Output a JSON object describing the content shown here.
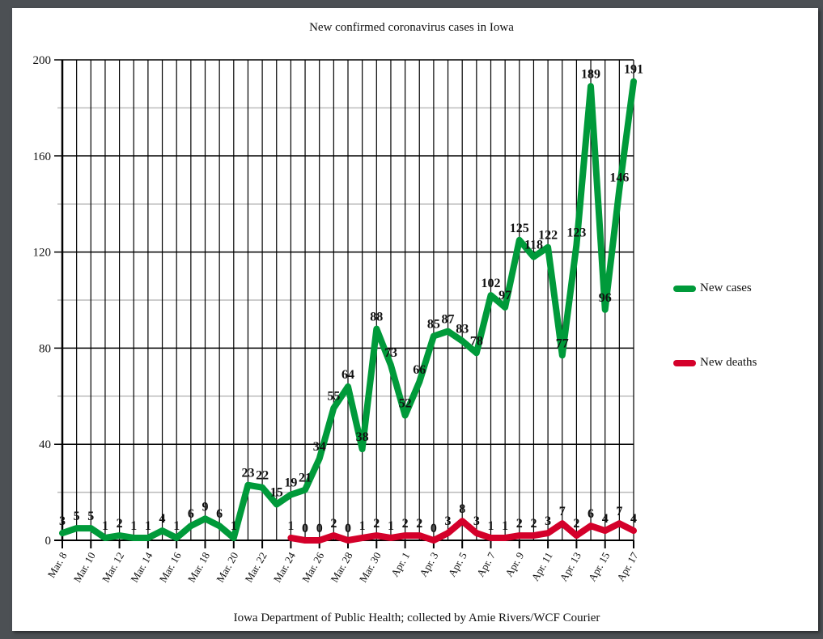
{
  "page": {
    "title": "New confirmed coronavirus cases in Iowa",
    "source": "Iowa Department of Public Health; collected by Amie Rivers/WCF Courier"
  },
  "legend": [
    {
      "label": "New cases",
      "color": "#009a3a"
    },
    {
      "label": "New deaths",
      "color": "#d4002a"
    }
  ],
  "chart_data": {
    "type": "line",
    "title": "New confirmed coronavirus cases in Iowa",
    "xlabel": "",
    "ylabel": "",
    "ylim": [
      0,
      200
    ],
    "yticks": [
      0,
      40,
      80,
      120,
      160,
      200
    ],
    "minor_gridlines": [
      20,
      60,
      100,
      140,
      180
    ],
    "grid": true,
    "legend_position": "right",
    "x": [
      "Mar. 8",
      "Mar. 9",
      "Mar. 10",
      "Mar. 11",
      "Mar. 12",
      "Mar. 13",
      "Mar. 14",
      "Mar. 15",
      "Mar. 16",
      "Mar. 17",
      "Mar. 18",
      "Mar. 19",
      "Mar. 20",
      "Mar. 21",
      "Mar. 22",
      "Mar. 23",
      "Mar. 24",
      "Mar. 25",
      "Mar. 26",
      "Mar. 27",
      "Mar. 28",
      "Mar. 29",
      "Mar. 30",
      "Mar. 31",
      "Apr. 1",
      "Apr. 2",
      "Apr. 3",
      "Apr. 4",
      "Apr. 5",
      "Apr. 6",
      "Apr. 7",
      "Apr. 8",
      "Apr. 9",
      "Apr. 10",
      "Apr. 11",
      "Apr. 12",
      "Apr. 13",
      "Apr. 14",
      "Apr. 15",
      "Apr. 16",
      "Apr. 17"
    ],
    "xtick_labels": [
      "Mar. 8",
      "Mar. 10",
      "Mar. 12",
      "Mar. 14",
      "Mar. 16",
      "Mar. 18",
      "Mar. 20",
      "Mar. 22",
      "Mar. 24",
      "Mar. 26",
      "Mar. 28",
      "Mar. 30",
      "Apr. 1",
      "Apr. 3",
      "Apr. 5",
      "Apr. 7",
      "Apr. 9",
      "Apr. 11",
      "Apr. 13",
      "Apr. 15",
      "Apr. 17"
    ],
    "series": [
      {
        "name": "New cases",
        "color": "#009a3a",
        "start_index": 0,
        "values": [
          3,
          5,
          5,
          1,
          2,
          1,
          1,
          4,
          1,
          6,
          9,
          6,
          1,
          23,
          22,
          15,
          19,
          21,
          34,
          55,
          64,
          38,
          88,
          73,
          52,
          66,
          85,
          87,
          83,
          78,
          102,
          97,
          125,
          118,
          122,
          77,
          123,
          189,
          96,
          146,
          191
        ]
      },
      {
        "name": "New deaths",
        "color": "#d4002a",
        "start_index": 16,
        "values": [
          1,
          0,
          0,
          2,
          0,
          1,
          2,
          1,
          2,
          2,
          0,
          3,
          8,
          3,
          1,
          1,
          2,
          2,
          3,
          7,
          2,
          6,
          4,
          7,
          4
        ]
      }
    ]
  }
}
